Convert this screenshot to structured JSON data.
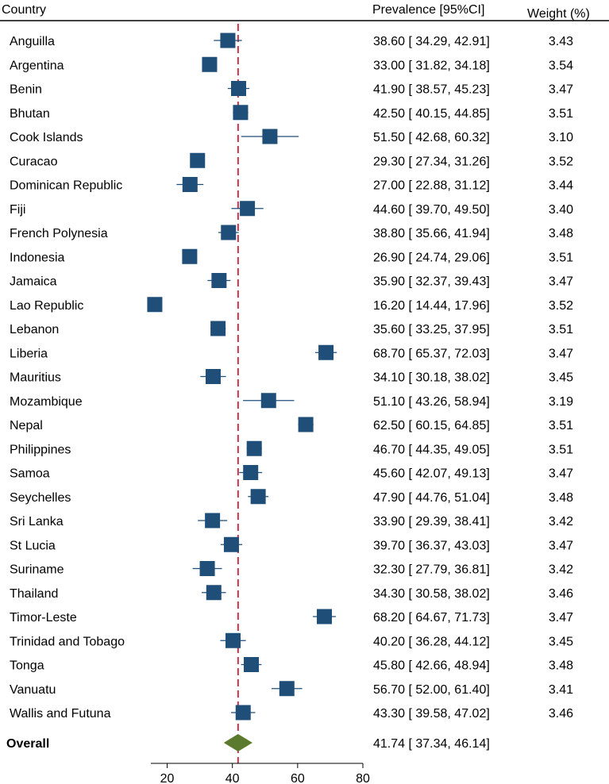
{
  "header": {
    "country": "Country",
    "prevalence": "Prevalence [95%CI]",
    "weight": "Weight (%)"
  },
  "colors": {
    "marker": "#1f4e79",
    "overall": "#5b7a2e",
    "reference_line": "#c8334a"
  },
  "chart_data": {
    "type": "forest",
    "xlim": [
      15,
      80
    ],
    "xticks": [
      20,
      40,
      60,
      80
    ],
    "reference_value": 41.74,
    "rows": [
      {
        "country": "Anguilla",
        "estimate": 38.6,
        "lower": 34.29,
        "upper": 42.91,
        "ci_text": "38.60 [ 34.29,  42.91]",
        "weight": "3.43"
      },
      {
        "country": "Argentina",
        "estimate": 33.0,
        "lower": 31.82,
        "upper": 34.18,
        "ci_text": "33.00 [ 31.82,  34.18]",
        "weight": "3.54"
      },
      {
        "country": "Benin",
        "estimate": 41.9,
        "lower": 38.57,
        "upper": 45.23,
        "ci_text": "41.90 [ 38.57,  45.23]",
        "weight": "3.47"
      },
      {
        "country": "Bhutan",
        "estimate": 42.5,
        "lower": 40.15,
        "upper": 44.85,
        "ci_text": "42.50 [ 40.15,  44.85]",
        "weight": "3.51"
      },
      {
        "country": "Cook Islands",
        "estimate": 51.5,
        "lower": 42.68,
        "upper": 60.32,
        "ci_text": "51.50 [ 42.68,  60.32]",
        "weight": "3.10"
      },
      {
        "country": "Curacao",
        "estimate": 29.3,
        "lower": 27.34,
        "upper": 31.26,
        "ci_text": "29.30 [ 27.34,  31.26]",
        "weight": "3.52"
      },
      {
        "country": "Dominican Republic",
        "estimate": 27.0,
        "lower": 22.88,
        "upper": 31.12,
        "ci_text": "27.00 [ 22.88,  31.12]",
        "weight": "3.44"
      },
      {
        "country": "Fiji",
        "estimate": 44.6,
        "lower": 39.7,
        "upper": 49.5,
        "ci_text": "44.60 [ 39.70,  49.50]",
        "weight": "3.40"
      },
      {
        "country": "French Polynesia",
        "estimate": 38.8,
        "lower": 35.66,
        "upper": 41.94,
        "ci_text": "38.80 [ 35.66,  41.94]",
        "weight": "3.48"
      },
      {
        "country": "Indonesia",
        "estimate": 26.9,
        "lower": 24.74,
        "upper": 29.06,
        "ci_text": "26.90 [ 24.74,  29.06]",
        "weight": "3.51"
      },
      {
        "country": "Jamaica",
        "estimate": 35.9,
        "lower": 32.37,
        "upper": 39.43,
        "ci_text": "35.90 [ 32.37,  39.43]",
        "weight": "3.47"
      },
      {
        "country": "Lao Republic",
        "estimate": 16.2,
        "lower": 14.44,
        "upper": 17.96,
        "ci_text": "16.20 [ 14.44,  17.96]",
        "weight": "3.52"
      },
      {
        "country": "Lebanon",
        "estimate": 35.6,
        "lower": 33.25,
        "upper": 37.95,
        "ci_text": "35.60 [ 33.25,  37.95]",
        "weight": "3.51"
      },
      {
        "country": "Liberia",
        "estimate": 68.7,
        "lower": 65.37,
        "upper": 72.03,
        "ci_text": "68.70 [ 65.37,  72.03]",
        "weight": "3.47"
      },
      {
        "country": "Mauritius",
        "estimate": 34.1,
        "lower": 30.18,
        "upper": 38.02,
        "ci_text": "34.10 [ 30.18,  38.02]",
        "weight": "3.45"
      },
      {
        "country": "Mozambique",
        "estimate": 51.1,
        "lower": 43.26,
        "upper": 58.94,
        "ci_text": "51.10 [ 43.26,  58.94]",
        "weight": "3.19"
      },
      {
        "country": "Nepal",
        "estimate": 62.5,
        "lower": 60.15,
        "upper": 64.85,
        "ci_text": "62.50 [ 60.15,  64.85]",
        "weight": "3.51"
      },
      {
        "country": "Philippines",
        "estimate": 46.7,
        "lower": 44.35,
        "upper": 49.05,
        "ci_text": "46.70 [ 44.35,  49.05]",
        "weight": "3.51"
      },
      {
        "country": "Samoa",
        "estimate": 45.6,
        "lower": 42.07,
        "upper": 49.13,
        "ci_text": "45.60 [ 42.07,  49.13]",
        "weight": "3.47"
      },
      {
        "country": "Seychelles",
        "estimate": 47.9,
        "lower": 44.76,
        "upper": 51.04,
        "ci_text": "47.90 [ 44.76,  51.04]",
        "weight": "3.48"
      },
      {
        "country": "Sri Lanka",
        "estimate": 33.9,
        "lower": 29.39,
        "upper": 38.41,
        "ci_text": "33.90 [ 29.39,  38.41]",
        "weight": "3.42"
      },
      {
        "country": "St Lucia",
        "estimate": 39.7,
        "lower": 36.37,
        "upper": 43.03,
        "ci_text": "39.70 [ 36.37,  43.03]",
        "weight": "3.47"
      },
      {
        "country": "Suriname",
        "estimate": 32.3,
        "lower": 27.79,
        "upper": 36.81,
        "ci_text": "32.30 [ 27.79,  36.81]",
        "weight": "3.42"
      },
      {
        "country": "Thailand",
        "estimate": 34.3,
        "lower": 30.58,
        "upper": 38.02,
        "ci_text": "34.30 [ 30.58,  38.02]",
        "weight": "3.46"
      },
      {
        "country": "Timor-Leste",
        "estimate": 68.2,
        "lower": 64.67,
        "upper": 71.73,
        "ci_text": "68.20 [ 64.67,  71.73]",
        "weight": "3.47"
      },
      {
        "country": "Trinidad and Tobago",
        "estimate": 40.2,
        "lower": 36.28,
        "upper": 44.12,
        "ci_text": "40.20 [ 36.28,  44.12]",
        "weight": "3.45"
      },
      {
        "country": "Tonga",
        "estimate": 45.8,
        "lower": 42.66,
        "upper": 48.94,
        "ci_text": "45.80 [ 42.66,  48.94]",
        "weight": "3.48"
      },
      {
        "country": "Vanuatu",
        "estimate": 56.7,
        "lower": 52.0,
        "upper": 61.4,
        "ci_text": "56.70 [ 52.00,  61.40]",
        "weight": "3.41"
      },
      {
        "country": "Wallis and Futuna",
        "estimate": 43.3,
        "lower": 39.58,
        "upper": 47.02,
        "ci_text": "43.30 [ 39.58,  47.02]",
        "weight": "3.46"
      }
    ],
    "overall": {
      "label": "Overall",
      "estimate": 41.74,
      "lower": 37.34,
      "upper": 46.14,
      "ci_text": "41.74 [ 37.34,  46.14]"
    }
  }
}
